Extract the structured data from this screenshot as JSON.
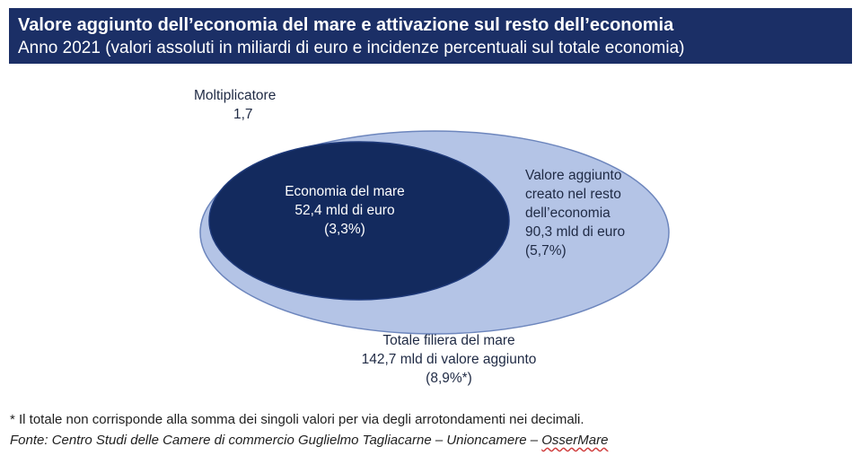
{
  "header": {
    "title": "Valore aggiunto dell’economia del mare e attivazione sul resto dell’economia",
    "subtitle": "Anno 2021 (valori assoluti in miliardi di euro e incidenze percentuali sul totale economia)"
  },
  "diagram": {
    "multiplier": {
      "label": "Moltiplicatore",
      "value": "1,7"
    },
    "inner": {
      "line1": "Economia del mare",
      "line2": "52,4 mld di euro",
      "line3": "(3,3%)"
    },
    "outer": {
      "line1": "Valore aggiunto",
      "line2": "creato nel resto",
      "line3": "dell’economia",
      "line4": "90,3 mld di euro",
      "line5": "(5,7%)"
    },
    "total": {
      "line1": "Totale filiera del mare",
      "line2": "142,7 mld di valore aggiunto",
      "line3": "(8,9%*)"
    },
    "colors": {
      "inner_fill": "#132a5e",
      "outer_fill": "#b4c4e6",
      "outline": "#6d86bd",
      "header_bg": "#1b2f66"
    }
  },
  "footer": {
    "note": "* Il totale non corrisponde alla somma dei singoli valori per via degli arrotondamenti nei decimali.",
    "source_prefix": "Fonte: Centro Studi delle Camere di commercio Guglielmo Tagliacarne – Unioncamere – ",
    "source_underlined": "OsserMare"
  }
}
